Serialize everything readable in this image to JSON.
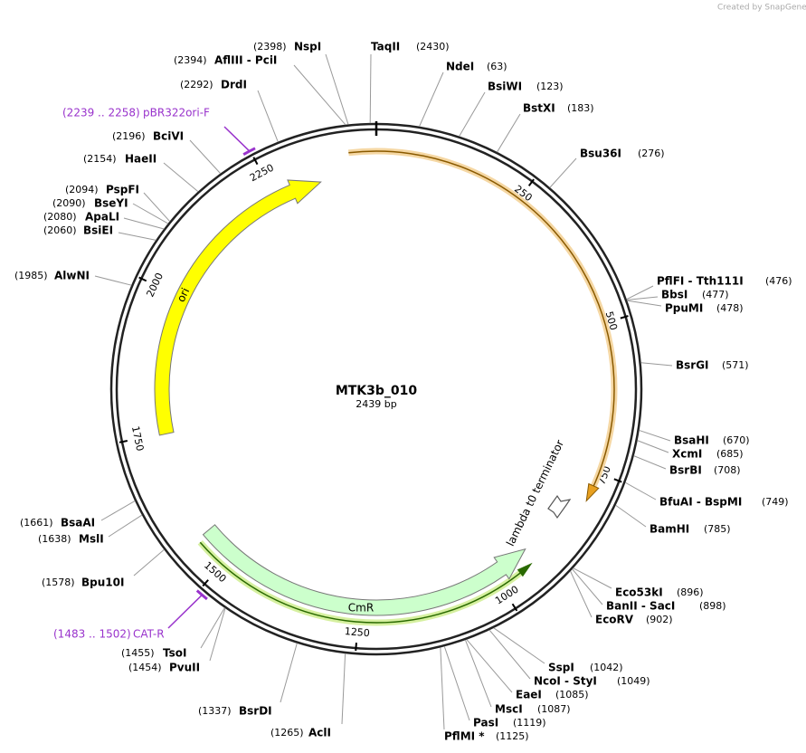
{
  "watermark": "Created by SnapGene",
  "map": {
    "name": "MTK3b_010",
    "size": "2439 bp"
  },
  "ruler": [
    250,
    500,
    750,
    1000,
    1250,
    1500,
    1750,
    2000,
    2250
  ],
  "features": [
    {
      "label": "ori"
    },
    {
      "label": "CmR"
    },
    {
      "label": "lambda t0 terminator"
    }
  ],
  "primers": [
    {
      "site": "(2239 .. 2258)",
      "name": "pBR322ori-F"
    },
    {
      "site": "(1483 .. 1502)",
      "name": "CAT-R"
    }
  ],
  "enzymes": [
    {
      "name": "NspI",
      "site": "(2398)"
    },
    {
      "name": "AflIII - PciI",
      "site": "(2394)"
    },
    {
      "name": "DrdI",
      "site": "(2292)"
    },
    {
      "name": "TaqII",
      "site": "(2430)"
    },
    {
      "name": "NdeI",
      "site": "(63)"
    },
    {
      "name": "BsiWI",
      "site": "(123)"
    },
    {
      "name": "BstXI",
      "site": "(183)"
    },
    {
      "name": "Bsu36I",
      "site": "(276)"
    },
    {
      "name": "PflFI - Tth111I",
      "site": "(476)"
    },
    {
      "name": "BbsI",
      "site": "(477)"
    },
    {
      "name": "PpuMI",
      "site": "(478)"
    },
    {
      "name": "BsrGI",
      "site": "(571)"
    },
    {
      "name": "BsaHI",
      "site": "(670)"
    },
    {
      "name": "XcmI",
      "site": "(685)"
    },
    {
      "name": "BsrBI",
      "site": "(708)"
    },
    {
      "name": "BfuAI - BspMI",
      "site": "(749)"
    },
    {
      "name": "BamHI",
      "site": "(785)"
    },
    {
      "name": "Eco53kI",
      "site": "(896)"
    },
    {
      "name": "BanII - SacI",
      "site": "(898)"
    },
    {
      "name": "EcoRV",
      "site": "(902)"
    },
    {
      "name": "SspI",
      "site": "(1042)"
    },
    {
      "name": "NcoI - StyI",
      "site": "(1049)"
    },
    {
      "name": "EaeI",
      "site": "(1085)"
    },
    {
      "name": "MscI",
      "site": "(1087)"
    },
    {
      "name": "PasI",
      "site": "(1119)"
    },
    {
      "name": "PflMI *",
      "site": "(1125)"
    },
    {
      "name": "AclI",
      "site": "(1265)"
    },
    {
      "name": "BsrDI",
      "site": "(1337)"
    },
    {
      "name": "PvuII",
      "site": "(1454)"
    },
    {
      "name": "TsoI",
      "site": "(1455)"
    },
    {
      "name": "Bpu10I",
      "site": "(1578)"
    },
    {
      "name": "MslI",
      "site": "(1638)"
    },
    {
      "name": "BsaAI",
      "site": "(1661)"
    },
    {
      "name": "AlwNI",
      "site": "(1985)"
    },
    {
      "name": "BsiEI",
      "site": "(2060)"
    },
    {
      "name": "ApaLI",
      "site": "(2080)"
    },
    {
      "name": "BseYI",
      "site": "(2090)"
    },
    {
      "name": "PspFI",
      "site": "(2094)"
    },
    {
      "name": "HaeII",
      "site": "(2154)"
    },
    {
      "name": "BciVI",
      "site": "(2196)"
    }
  ]
}
